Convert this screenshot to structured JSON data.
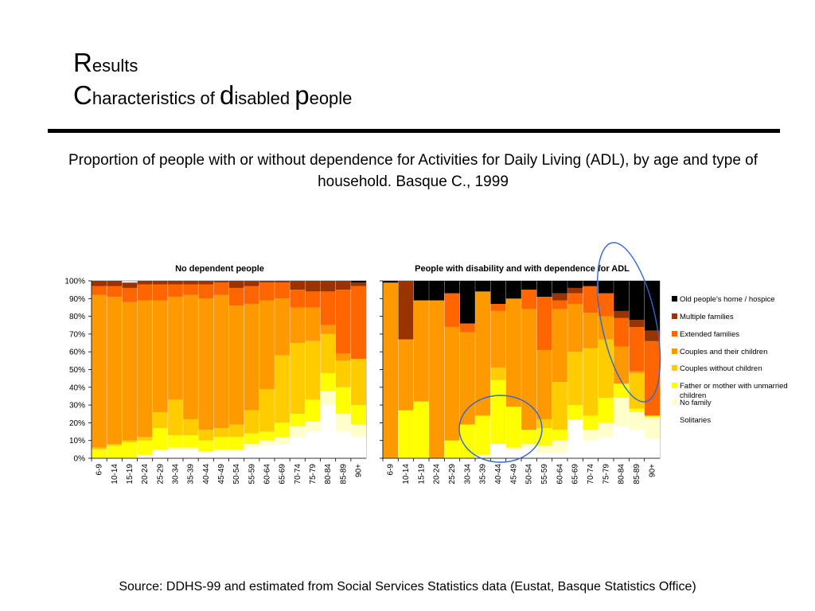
{
  "header": {
    "title": [
      {
        "cap": "R",
        "rest": "esults"
      }
    ],
    "subtitle_words": [
      {
        "cap": "C",
        "rest": "haracteristics of "
      },
      {
        "cap": "d",
        "rest": "isabled "
      },
      {
        "cap": "p",
        "rest": "eople"
      }
    ]
  },
  "caption": "Proportion of people with or without dependence for Activities for Daily Living (ADL), by age and type of household. Basque C., 1999",
  "source": "Source: DDHS-99 and estimated from Social Services Statistics data (Eustat, Basque Statistics Office)",
  "colors": {
    "Old  people's home / hospice": "#000000",
    "Multiple families": "#993300",
    "Extended families": "#ff6600",
    "Couples and their children": "#ff9900",
    "Couples without children": "#ffcc00",
    "Father or mother with unmarried children": "#ffff00",
    "No family": "#ffffcc",
    "Solitaries": "#ffffff",
    "highlight_ellipse": "#3366cc"
  },
  "chart_data": [
    {
      "type": "bar",
      "stacked": true,
      "title": "No dependent people",
      "ylim": [
        0,
        100
      ],
      "yticks": [
        "0%",
        "10%",
        "20%",
        "30%",
        "40%",
        "50%",
        "60%",
        "70%",
        "80%",
        "90%",
        "100%"
      ],
      "categories": [
        "6-9",
        "10-14",
        "15-19",
        "20-24",
        "25-29",
        "30-34",
        "35-39",
        "40-44",
        "45-49",
        "50-54",
        "55-59",
        "60-64",
        "65-69",
        "70-74",
        "75-79",
        "80-84",
        "85-89",
        "90+"
      ],
      "series": [
        {
          "name": "Solitaries",
          "values": [
            0,
            0,
            0,
            1,
            4,
            5,
            5,
            3,
            4,
            4,
            6,
            7,
            8,
            12,
            15,
            30,
            15,
            12
          ]
        },
        {
          "name": "No family",
          "values": [
            0,
            0,
            0,
            1,
            1,
            1,
            1,
            1,
            1,
            1,
            2,
            3,
            4,
            6,
            6,
            8,
            10,
            7
          ]
        },
        {
          "name": "Father or mother with unmarried children",
          "values": [
            5,
            7,
            9,
            8,
            12,
            7,
            7,
            6,
            7,
            7,
            6,
            5,
            8,
            7,
            12,
            10,
            15,
            11
          ]
        },
        {
          "name": "Couples without children",
          "values": [
            1,
            1,
            1,
            2,
            9,
            20,
            9,
            6,
            5,
            7,
            13,
            24,
            38,
            40,
            33,
            22,
            15,
            26
          ]
        },
        {
          "name": "Couples and their children",
          "values": [
            86,
            83,
            78,
            77,
            63,
            58,
            70,
            74,
            75,
            67,
            60,
            50,
            32,
            20,
            19,
            5,
            4,
            0
          ]
        },
        {
          "name": "Extended families",
          "values": [
            5,
            6,
            8,
            9,
            9,
            7,
            6,
            8,
            7,
            10,
            10,
            10,
            9,
            10,
            9,
            19,
            36,
            41
          ]
        },
        {
          "name": "Multiple families",
          "values": [
            3,
            3,
            3,
            2,
            2,
            2,
            2,
            2,
            1,
            4,
            3,
            1,
            1,
            5,
            6,
            6,
            5,
            2
          ]
        },
        {
          "name": "Old  people's home / hospice",
          "values": [
            0,
            0,
            0,
            0,
            0,
            0,
            0,
            0,
            0,
            0,
            0,
            0,
            0,
            0,
            0,
            0,
            0,
            1
          ]
        }
      ]
    },
    {
      "type": "bar",
      "stacked": true,
      "title": "People with disability and with dependence for ADL",
      "ylim": [
        0,
        100
      ],
      "categories": [
        "6-9",
        "10-14",
        "15-19",
        "20-24",
        "25-29",
        "30-34",
        "35-39",
        "40-44",
        "45-49",
        "50-54",
        "55-59",
        "60-64",
        "65-69",
        "70-74",
        "75-79",
        "80-84",
        "85-89",
        "90+"
      ],
      "series": [
        {
          "name": "Solitaries",
          "values": [
            0,
            0,
            0,
            0,
            0,
            0,
            0,
            8,
            5,
            6,
            3,
            3,
            22,
            10,
            12,
            18,
            16,
            11
          ]
        },
        {
          "name": "No family",
          "values": [
            0,
            0,
            0,
            0,
            0,
            0,
            2,
            0,
            1,
            2,
            4,
            7,
            0,
            6,
            8,
            16,
            10,
            12
          ]
        },
        {
          "name": "Father or mother with unmarried children",
          "values": [
            0,
            27,
            32,
            0,
            10,
            19,
            22,
            36,
            23,
            8,
            10,
            6,
            8,
            8,
            14,
            8,
            2,
            1
          ]
        },
        {
          "name": "Couples without children",
          "values": [
            0,
            0,
            0,
            0,
            0,
            0,
            0,
            7,
            0,
            0,
            5,
            27,
            30,
            38,
            33,
            0,
            20,
            0
          ]
        },
        {
          "name": "Couples and their children",
          "values": [
            99,
            40,
            57,
            89,
            64,
            52,
            70,
            32,
            61,
            68,
            39,
            41,
            27,
            20,
            13,
            21,
            1,
            0
          ]
        },
        {
          "name": "Extended families",
          "values": [
            0,
            0,
            0,
            0,
            19,
            5,
            0,
            4,
            0,
            11,
            30,
            5,
            6,
            15,
            13,
            16,
            25,
            42
          ]
        },
        {
          "name": "Multiple families",
          "values": [
            0,
            33,
            0,
            0,
            0,
            0,
            0,
            0,
            0,
            0,
            0,
            4,
            3,
            0,
            0,
            4,
            4,
            6
          ]
        },
        {
          "name": "Old  people's home / hospice",
          "values": [
            1,
            0,
            11,
            11,
            7,
            24,
            6,
            13,
            10,
            5,
            9,
            7,
            4,
            3,
            7,
            17,
            22,
            28
          ]
        }
      ]
    }
  ],
  "legend": [
    "Old  people's home / hospice",
    "Multiple families",
    "Extended families",
    "Couples and their children",
    "Couples without children",
    "Father or mother with unmarried children",
    "No family",
    "Solitaries"
  ]
}
